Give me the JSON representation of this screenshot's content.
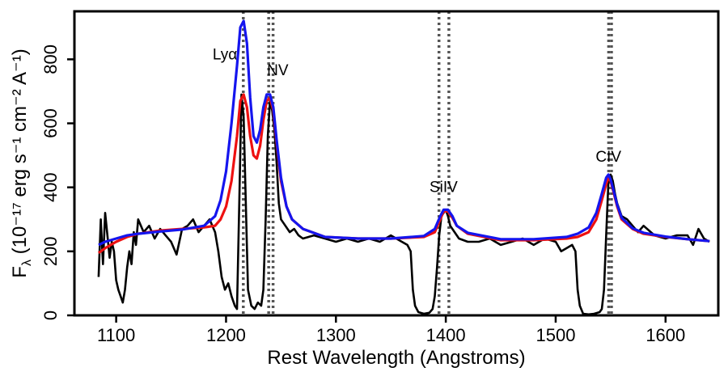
{
  "chart_data": {
    "type": "line",
    "title": "",
    "xlabel": "Rest Wavelength (Angstroms)",
    "ylabel_base": "F",
    "ylabel_sub": "λ",
    "ylabel_rest": " (10⁻¹⁷ erg s⁻¹ cm⁻² A⁻¹)",
    "xlim": [
      1062,
      1648
    ],
    "ylim": [
      0,
      950
    ],
    "xticks": [
      1100,
      1200,
      1300,
      1400,
      1500,
      1600
    ],
    "yticks": [
      0,
      200,
      400,
      600,
      800
    ],
    "grid": false,
    "legend": "none",
    "reference_lines": [
      1215.7,
      1238.8,
      1242.8,
      1393.8,
      1402.8,
      1548.2,
      1550.8
    ],
    "annotations": [
      {
        "text": "Lyα",
        "x": 1199,
        "y": 800
      },
      {
        "text": "NV",
        "x": 1247,
        "y": 750
      },
      {
        "text": "SiIV",
        "x": 1398,
        "y": 385
      },
      {
        "text": "CIV",
        "x": 1548,
        "y": 480
      }
    ],
    "series": [
      {
        "color": "#000000",
        "x": [
          1084,
          1086,
          1088,
          1090,
          1092,
          1094,
          1096,
          1098,
          1100,
          1102,
          1104,
          1106,
          1108,
          1110,
          1112,
          1114,
          1116,
          1118,
          1120,
          1125,
          1130,
          1135,
          1140,
          1145,
          1150,
          1155,
          1160,
          1165,
          1170,
          1175,
          1180,
          1185,
          1190,
          1193,
          1196,
          1199,
          1202,
          1205,
          1208,
          1210,
          1212,
          1214,
          1216,
          1218,
          1220,
          1223,
          1226,
          1229,
          1232,
          1234,
          1236,
          1238,
          1240,
          1242,
          1244,
          1246,
          1248,
          1250,
          1254,
          1258,
          1262,
          1266,
          1270,
          1280,
          1290,
          1300,
          1310,
          1320,
          1330,
          1340,
          1350,
          1360,
          1365,
          1368,
          1370,
          1372,
          1375,
          1380,
          1385,
          1388,
          1390,
          1392,
          1394,
          1396,
          1398,
          1400,
          1402,
          1404,
          1408,
          1412,
          1420,
          1430,
          1440,
          1450,
          1460,
          1470,
          1480,
          1490,
          1500,
          1505,
          1510,
          1515,
          1518,
          1520,
          1522,
          1525,
          1530,
          1535,
          1540,
          1542,
          1544,
          1546,
          1548,
          1550,
          1552,
          1554,
          1556,
          1560,
          1565,
          1570,
          1575,
          1580,
          1590,
          1600,
          1610,
          1620,
          1625,
          1630,
          1635,
          1640
        ],
        "y": [
          120,
          300,
          160,
          320,
          250,
          180,
          230,
          200,
          110,
          80,
          60,
          40,
          80,
          150,
          200,
          160,
          260,
          220,
          300,
          260,
          280,
          240,
          270,
          250,
          230,
          190,
          270,
          280,
          300,
          260,
          280,
          300,
          260,
          200,
          120,
          80,
          100,
          60,
          30,
          20,
          350,
          690,
          620,
          350,
          80,
          30,
          20,
          40,
          30,
          80,
          300,
          560,
          670,
          640,
          580,
          480,
          350,
          300,
          280,
          260,
          270,
          250,
          240,
          250,
          240,
          230,
          240,
          230,
          240,
          230,
          250,
          230,
          220,
          200,
          80,
          30,
          10,
          5,
          8,
          20,
          60,
          150,
          250,
          310,
          320,
          330,
          310,
          280,
          260,
          240,
          230,
          230,
          240,
          220,
          230,
          240,
          220,
          240,
          230,
          200,
          210,
          220,
          200,
          80,
          30,
          5,
          3,
          5,
          10,
          20,
          80,
          250,
          420,
          440,
          420,
          380,
          350,
          310,
          300,
          280,
          260,
          280,
          250,
          240,
          250,
          250,
          220,
          270,
          240,
          230
        ]
      },
      {
        "color": "#ee1111",
        "x": [
          1084,
          1090,
          1100,
          1110,
          1120,
          1140,
          1160,
          1180,
          1190,
          1195,
          1200,
          1205,
          1210,
          1213,
          1216,
          1219,
          1222,
          1225,
          1228,
          1231,
          1234,
          1237,
          1240,
          1243,
          1246,
          1250,
          1255,
          1260,
          1270,
          1290,
          1320,
          1350,
          1380,
          1390,
          1395,
          1398,
          1402,
          1406,
          1410,
          1420,
          1450,
          1480,
          1510,
          1520,
          1530,
          1537,
          1542,
          1546,
          1548,
          1550,
          1553,
          1556,
          1560,
          1570,
          1580,
          1600,
          1620,
          1640
        ],
        "y": [
          195,
          210,
          230,
          245,
          255,
          265,
          270,
          275,
          280,
          300,
          340,
          420,
          560,
          670,
          690,
          650,
          560,
          500,
          490,
          530,
          610,
          670,
          680,
          640,
          540,
          420,
          340,
          300,
          270,
          245,
          240,
          240,
          245,
          260,
          300,
          325,
          325,
          305,
          280,
          255,
          235,
          235,
          240,
          245,
          260,
          300,
          360,
          410,
          430,
          420,
          380,
          340,
          300,
          270,
          255,
          245,
          238,
          232
        ]
      },
      {
        "color": "#1515ee",
        "x": [
          1084,
          1090,
          1100,
          1110,
          1120,
          1140,
          1160,
          1180,
          1190,
          1195,
          1200,
          1205,
          1210,
          1213,
          1216,
          1219,
          1222,
          1225,
          1228,
          1231,
          1234,
          1237,
          1240,
          1243,
          1246,
          1250,
          1255,
          1260,
          1270,
          1290,
          1320,
          1350,
          1380,
          1390,
          1395,
          1398,
          1402,
          1406,
          1410,
          1420,
          1450,
          1480,
          1510,
          1520,
          1530,
          1537,
          1542,
          1546,
          1548,
          1550,
          1553,
          1556,
          1560,
          1570,
          1580,
          1600,
          1620,
          1640
        ],
        "y": [
          220,
          230,
          240,
          250,
          255,
          262,
          268,
          280,
          310,
          360,
          450,
          600,
          780,
          900,
          920,
          850,
          680,
          560,
          540,
          580,
          650,
          690,
          690,
          650,
          550,
          430,
          340,
          300,
          270,
          245,
          240,
          240,
          248,
          270,
          310,
          330,
          330,
          310,
          280,
          258,
          238,
          238,
          245,
          255,
          275,
          320,
          380,
          430,
          440,
          425,
          385,
          345,
          305,
          272,
          258,
          246,
          238,
          232
        ]
      }
    ]
  }
}
